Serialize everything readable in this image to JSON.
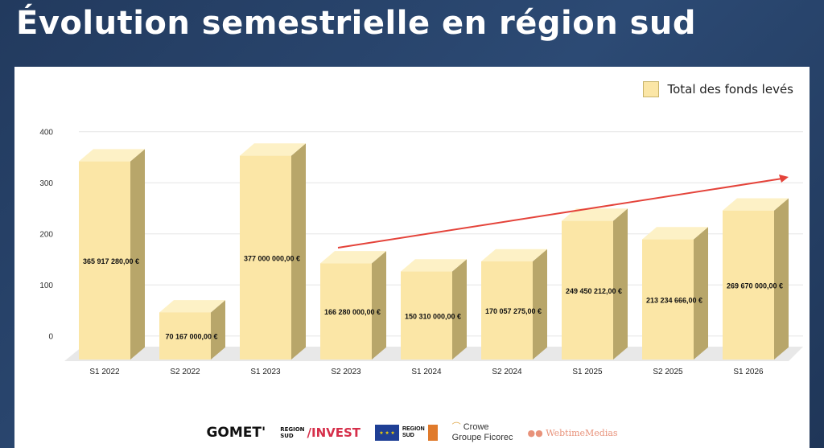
{
  "page": {
    "title": "Évolution semestrielle en région sud"
  },
  "colors": {
    "bar_front": "#fbe6a6",
    "bar_top": "#fdf1c6",
    "bar_side": "#b8a66a",
    "trend": "#e4433a",
    "grid": "#e6e6e6"
  },
  "chart_data": {
    "type": "bar",
    "categories": [
      "S1 2022",
      "S2 2022",
      "S1 2023",
      "S2 2023",
      "S1 2024",
      "S2 2024",
      "S1 2025",
      "S2 2025",
      "S1 2026"
    ],
    "series": [
      {
        "name": "Total des fonds levés",
        "values": [
          365.91728,
          70.167,
          377,
          166.28,
          150.31,
          170.057275,
          249.450212,
          213.234666,
          269.67
        ],
        "labels": [
          "365 917 280,00 €",
          "70 167 000,00 €",
          "377 000 000,00 €",
          "166 280 000,00 €",
          "150 310 000,00 €",
          "170 057 275,00 €",
          "249 450 212,00 €",
          "213 234 666,00 €",
          "269 670 000,00 €"
        ]
      }
    ],
    "yticks": [
      "0",
      "100",
      "200",
      "300",
      "400"
    ],
    "ylim": [
      0,
      400
    ],
    "grid": true,
    "legend": "top-right",
    "trend_line": {
      "from_category": "S2 2023",
      "to_category": "S1 2026",
      "direction": "up"
    }
  },
  "logos": {
    "gomet": "GOMET'",
    "region_small_top": "REGION",
    "region_small_bottom": "SUD",
    "invest": "/INVEST",
    "eu": "",
    "region_sud_top": "REGION",
    "region_sud_bottom": "SUD",
    "crowe_line1": "Crowe",
    "crowe_line2": "Groupe Ficorec",
    "webtime": "WebtimeMedias"
  }
}
